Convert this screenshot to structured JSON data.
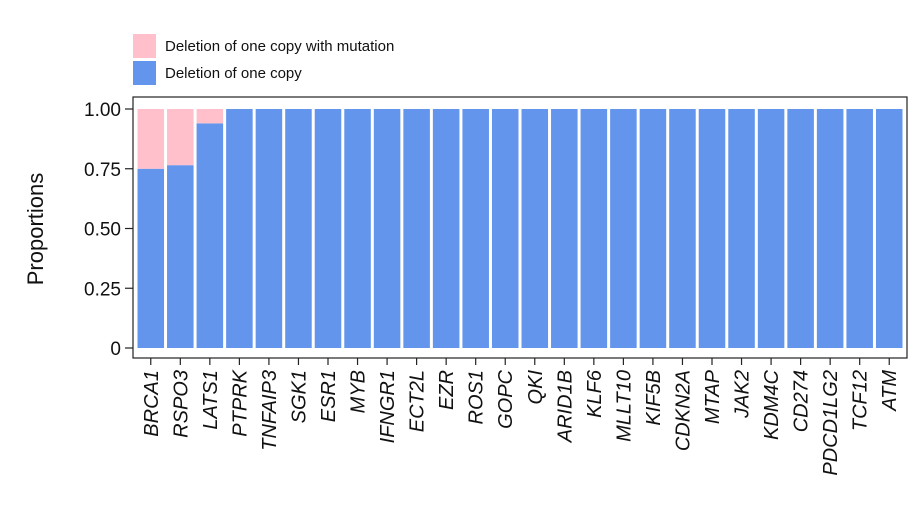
{
  "chart_data": {
    "type": "bar",
    "stacked": true,
    "title": "",
    "xlabel": "",
    "ylabel": "Proportions",
    "ylim": [
      0,
      1
    ],
    "yticks": [
      0,
      0.25,
      0.5,
      0.75,
      1.0
    ],
    "ytick_labels": [
      "0",
      "0.25",
      "0.50",
      "0.75",
      "1.00"
    ],
    "categories": [
      "BRCA1",
      "RSPO3",
      "LATS1",
      "PTPRK",
      "TNFAIP3",
      "SGK1",
      "ESR1",
      "MYB",
      "IFNGR1",
      "ECT2L",
      "EZR",
      "ROS1",
      "GOPC",
      "QKI",
      "ARID1B",
      "KLF6",
      "MLLT10",
      "KIF5B",
      "CDKN2A",
      "MTAP",
      "JAK2",
      "KDM4C",
      "CD274",
      "PDCD1LG2",
      "TCF12",
      "ATM"
    ],
    "series": [
      {
        "name": "Deletion of one copy",
        "color": "#6495ED",
        "values": [
          0.75,
          0.765,
          0.94,
          1,
          1,
          1,
          1,
          1,
          1,
          1,
          1,
          1,
          1,
          1,
          1,
          1,
          1,
          1,
          1,
          1,
          1,
          1,
          1,
          1,
          1,
          1
        ]
      },
      {
        "name": "Deletion of one copy with mutation",
        "color": "#FFC0CB",
        "values": [
          0.25,
          0.235,
          0.06,
          0,
          0,
          0,
          0,
          0,
          0,
          0,
          0,
          0,
          0,
          0,
          0,
          0,
          0,
          0,
          0,
          0,
          0,
          0,
          0,
          0,
          0,
          0
        ]
      }
    ],
    "legend": {
      "placement": "top-left",
      "order": [
        "Deletion of one copy with mutation",
        "Deletion of one copy"
      ]
    },
    "grid": false
  }
}
